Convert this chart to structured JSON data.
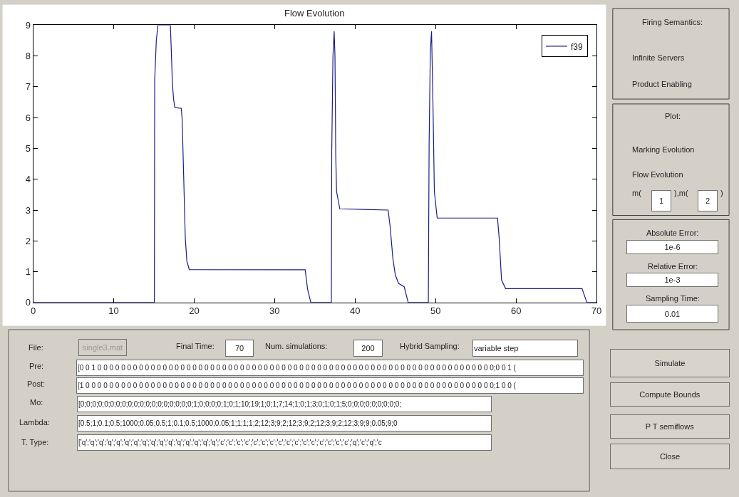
{
  "chart_data": [
    {
      "type": "line",
      "title": "Flow Evolution",
      "x": [
        0,
        15.06,
        15.1,
        15.3,
        15.5,
        17.05,
        17.2,
        17.3,
        17.45,
        17.6,
        18.4,
        18.5,
        18.6,
        18.75,
        18.9,
        19.1,
        19.4,
        33.8,
        34.1,
        34.5,
        34.7,
        36.55,
        37.05,
        37.1,
        37.25,
        37.4,
        37.5,
        37.6,
        37.7,
        38.1,
        44.1,
        44.35,
        44.7,
        45.0,
        45.4,
        46.1,
        46.6,
        49.1,
        49.2,
        49.35,
        49.5,
        49.65,
        49.85,
        50.2,
        57.7,
        57.9,
        58.2,
        58.7,
        68.2,
        68.8,
        70
      ],
      "series": [
        {
          "name": "f39",
          "color": "#1c1c85",
          "values": [
            0,
            0,
            7.2,
            8.5,
            9,
            9,
            7.9,
            7.1,
            6.6,
            6.33,
            6.3,
            6.0,
            5.1,
            3.6,
            2.1,
            1.34,
            1.07,
            1.06,
            0.43,
            0,
            0,
            0,
            0,
            4.9,
            8.0,
            8.8,
            8.0,
            4.75,
            3.6,
            3.04,
            3.0,
            2.48,
            1.42,
            0.89,
            0.62,
            0.51,
            0,
            0,
            5.2,
            8.15,
            8.8,
            6.87,
            3.6,
            2.74,
            2.74,
            2.1,
            0.73,
            0.45,
            0.45,
            0,
            0
          ]
        }
      ],
      "xlim": [
        0,
        70
      ],
      "ylim": [
        0,
        9
      ],
      "xticks": [
        0,
        10,
        20,
        30,
        40,
        50,
        60,
        70
      ],
      "yticks": [
        0,
        1,
        2,
        3,
        4,
        5,
        6,
        7,
        8,
        9
      ],
      "legend": "top right",
      "line_style": "solid",
      "marker": "none"
    },
    {
      "type": "other",
      "annotations": [
        "File:",
        "single3.mat",
        "Final Time:",
        "70",
        "Num. simulations:",
        "200",
        "Hybrid Sampling:",
        "variable step",
        "Pre:",
        "[0 0 1 0 0 0 0 0 0 0 0 0 0 0 0 0 0 0 0 0 0 0 0 0 0 0 0 0 0 0 0 0 0 0 0 0 0 0 0 0 0 0 0 0 0 0 0 0 0 0 0 0 0 0 0 0 0 0 0 0 0 0 0 0 0 0 0 0 0 0;0 0 1 (",
        "Post:",
        "[1 0 0 0 0 0 0 0 0 0 0 0 0 0 0 0 0 0 0 0 0 0 0 0 0 0 0 0 0 0 0 0 0 0 0 0 0 0 0 0 0 0 0 0 0 0 0 0 0 0 0 0 0 0 0 0 0 0 0 0 0 0 0 0 0 0 0 0 0 0;1 0 0 (",
        "Mo:",
        "[0;0;0;0;0;0;0;0;0;0;0;0;0;0;0;0;0;0;0;1;0;0;0;0;1;0;1;10;19;1;0;1;7;14;1;0;1;3;0;1;0;1;5;0;0;0;0;0;0;0;0;0;",
        "Lambda:",
        "[0.5;1;0.1;0.5;1000;0.05;0.5;1;0.1;0.5;1000;0.05;1;1;1;1;2;12;3;9;2;12;3;9;2;12;3;9;2;12;3;9;9;0.05;9;0",
        "T. Type:",
        "['q';'q';'q';'q';'q';'q';'q';'q';'q';'q';'q';'q';'q';'q';'q';'q';'c';'c';'c';'c';'c';'c';'c';'c';'c';'c';'c';'c';'c';'c';'c';'c';'q';'c';'q';'c",
        "Firing Semantics:",
        "Infinite Servers",
        "Product Enabling",
        "Plot:",
        "Marking Evolution",
        "Flow Evolution",
        "m(",
        "1",
        "),m(",
        "2",
        ")",
        "Absolute Error:",
        "1e-6",
        "Relative Error:",
        "1e-3",
        "Sampling Time:",
        "0.01",
        "Simulate",
        "Compute Bounds",
        "P T semiflows",
        "Close"
      ]
    }
  ]
}
